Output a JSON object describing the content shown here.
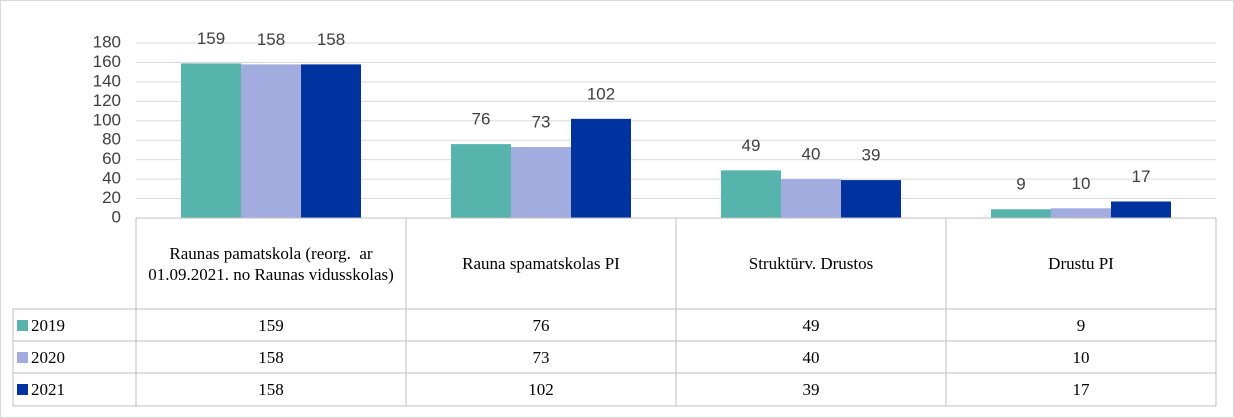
{
  "chart_data": {
    "type": "bar",
    "categories": [
      "Raunas pamatskola (reorg.  ar 01.09.2021. no Raunas vidusskolas)",
      "Rauna spamatskolas PI",
      "Struktūrv. Drustos",
      "Drustu PI"
    ],
    "series": [
      {
        "name": "2019",
        "color": "#56b4ad",
        "values": [
          159,
          76,
          49,
          9
        ]
      },
      {
        "name": "2020",
        "color": "#a2acdf",
        "values": [
          158,
          73,
          40,
          10
        ]
      },
      {
        "name": "2021",
        "color": "#0033a0",
        "values": [
          158,
          102,
          39,
          17
        ]
      }
    ],
    "ylim": [
      0,
      180
    ],
    "yticks": [
      0,
      20,
      40,
      60,
      80,
      100,
      120,
      140,
      160,
      180
    ],
    "grid": true,
    "data_table": true
  }
}
